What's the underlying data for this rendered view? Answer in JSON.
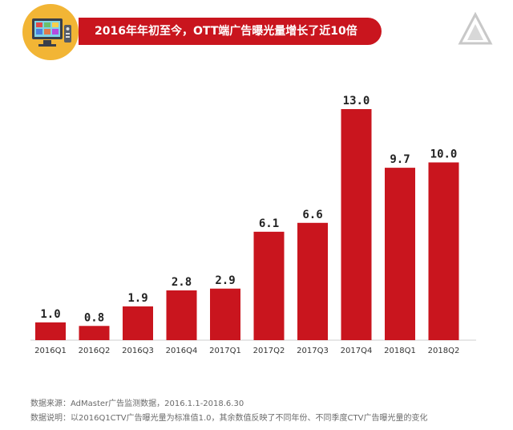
{
  "header": {
    "title": "2016年年初至今，OTT端广告曝光量增长了近10倍",
    "icon": "tv-icon",
    "logo": "triangle-logo-icon"
  },
  "footer": {
    "source": "数据来源：AdMaster广告监测数据，2016.1.1-2018.6.30",
    "note": "数据说明：以2016Q1CTV广告曝光量为标准值1.0，其余数值反映了不同年份、不同季度CTV广告曝光量的变化"
  },
  "colors": {
    "bar": "#c9151e",
    "banner": "#c9151e",
    "icon_circle": "#f2b535"
  },
  "chart_data": {
    "type": "bar",
    "categories": [
      "2016Q1",
      "2016Q2",
      "2016Q3",
      "2016Q4",
      "2017Q1",
      "2017Q2",
      "2017Q3",
      "2017Q4",
      "2018Q1",
      "2018Q2"
    ],
    "values": [
      1.0,
      0.8,
      1.9,
      2.8,
      2.9,
      6.1,
      6.6,
      13.0,
      9.7,
      10.0
    ],
    "labels": [
      "1.0",
      "0.8",
      "1.9",
      "2.8",
      "2.9",
      "6.1",
      "6.6",
      "13.0",
      "9.7",
      "10.0"
    ],
    "title": "2016年年初至今，OTT端广告曝光量增长了近10倍",
    "xlabel": "",
    "ylabel": "",
    "ylim": [
      0,
      13
    ],
    "grid": false,
    "legend": "none"
  }
}
